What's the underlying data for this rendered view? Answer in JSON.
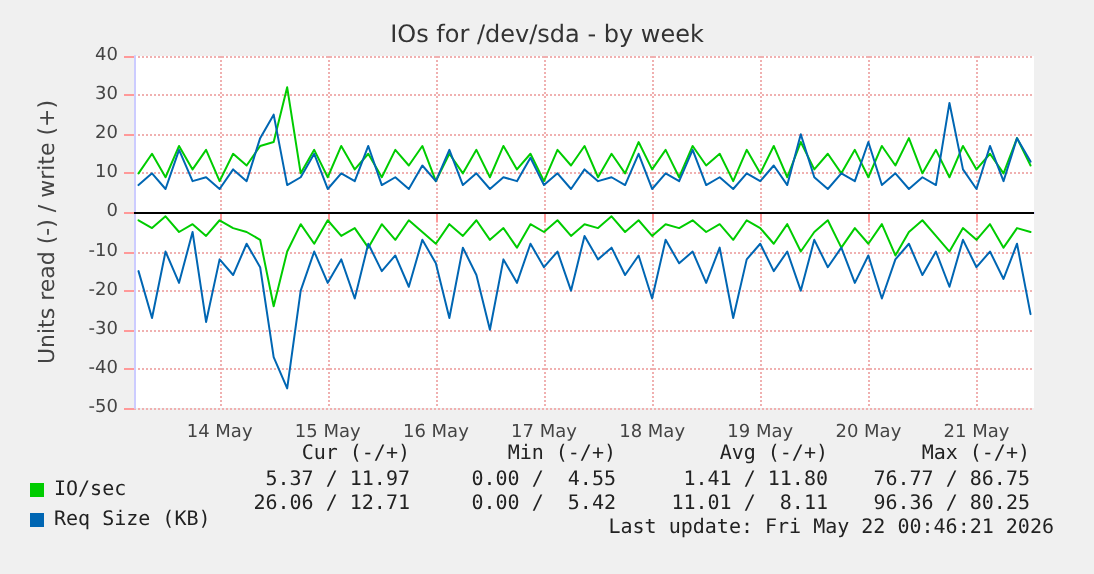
{
  "chart_data": {
    "type": "line",
    "title": "IOs for /dev/sda - by week",
    "ylabel": "Units read (-) / write (+)",
    "x": [
      "2026-05-13T18:00",
      "2026-05-13T21:00",
      "2026-05-14T00:00",
      "2026-05-14T03:00",
      "2026-05-14T06:00",
      "2026-05-14T09:00",
      "2026-05-14T12:00",
      "2026-05-14T15:00",
      "2026-05-14T18:00",
      "2026-05-14T21:00",
      "2026-05-15T00:00",
      "2026-05-15T03:00",
      "2026-05-15T06:00",
      "2026-05-15T09:00",
      "2026-05-15T12:00",
      "2026-05-15T15:00",
      "2026-05-15T18:00",
      "2026-05-15T21:00",
      "2026-05-16T00:00",
      "2026-05-16T03:00",
      "2026-05-16T06:00",
      "2026-05-16T09:00",
      "2026-05-16T12:00",
      "2026-05-16T15:00",
      "2026-05-16T18:00",
      "2026-05-16T21:00",
      "2026-05-17T00:00",
      "2026-05-17T03:00",
      "2026-05-17T06:00",
      "2026-05-17T09:00",
      "2026-05-17T12:00",
      "2026-05-17T15:00",
      "2026-05-17T18:00",
      "2026-05-17T21:00",
      "2026-05-18T00:00",
      "2026-05-18T03:00",
      "2026-05-18T06:00",
      "2026-05-18T09:00",
      "2026-05-18T12:00",
      "2026-05-18T15:00",
      "2026-05-18T18:00",
      "2026-05-18T21:00",
      "2026-05-19T00:00",
      "2026-05-19T03:00",
      "2026-05-19T06:00",
      "2026-05-19T09:00",
      "2026-05-19T12:00",
      "2026-05-19T15:00",
      "2026-05-19T18:00",
      "2026-05-19T21:00",
      "2026-05-20T00:00",
      "2026-05-20T03:00",
      "2026-05-20T06:00",
      "2026-05-20T09:00",
      "2026-05-20T12:00",
      "2026-05-20T15:00",
      "2026-05-20T18:00",
      "2026-05-20T21:00",
      "2026-05-21T00:00",
      "2026-05-21T03:00",
      "2026-05-21T06:00",
      "2026-05-21T09:00",
      "2026-05-21T12:00",
      "2026-05-21T15:00",
      "2026-05-21T18:00",
      "2026-05-21T21:00",
      "2026-05-22T00:00"
    ],
    "series": [
      {
        "name": "IO/sec",
        "color": "#00cc00",
        "values": [
          10,
          15,
          9,
          17,
          11,
          16,
          8,
          15,
          12,
          17,
          18,
          32,
          10,
          16,
          9,
          17,
          11,
          15,
          9,
          16,
          12,
          17,
          8,
          15,
          10,
          16,
          9,
          17,
          11,
          15,
          8,
          16,
          12,
          17,
          9,
          15,
          10,
          18,
          11,
          16,
          9,
          17,
          12,
          15,
          8,
          16,
          10,
          17,
          9,
          18,
          11,
          15,
          10,
          16,
          9,
          17,
          12,
          19,
          10,
          16,
          9,
          17,
          11,
          15,
          10,
          19,
          12
        ]
      },
      {
        "color": "#00cc00",
        "values": [
          -2,
          -4,
          -1,
          -5,
          -3,
          -6,
          -2,
          -4,
          -5,
          -7,
          -24,
          -10,
          -3,
          -8,
          -2,
          -6,
          -4,
          -9,
          -3,
          -7,
          -2,
          -5,
          -8,
          -3,
          -6,
          -2,
          -7,
          -4,
          -9,
          -3,
          -5,
          -2,
          -6,
          -3,
          -4,
          -1,
          -5,
          -2,
          -6,
          -3,
          -4,
          -2,
          -5,
          -3,
          -7,
          -2,
          -4,
          -8,
          -3,
          -10,
          -5,
          -2,
          -9,
          -4,
          -8,
          -3,
          -11,
          -5,
          -2,
          -6,
          -10,
          -4,
          -7,
          -3,
          -9,
          -4,
          -5
        ]
      },
      {
        "name": "Req Size (KB)",
        "color": "#0066b3",
        "values": [
          7,
          10,
          6,
          16,
          8,
          9,
          6,
          11,
          8,
          19,
          25,
          7,
          9,
          15,
          6,
          10,
          8,
          17,
          7,
          9,
          6,
          12,
          8,
          16,
          7,
          10,
          6,
          9,
          8,
          14,
          7,
          10,
          6,
          11,
          8,
          9,
          7,
          15,
          6,
          10,
          8,
          16,
          7,
          9,
          6,
          10,
          8,
          12,
          7,
          20,
          9,
          6,
          10,
          8,
          18,
          7,
          10,
          6,
          9,
          7,
          28,
          11,
          6,
          17,
          8,
          19,
          13
        ]
      },
      {
        "color": "#0066b3",
        "values": [
          -15,
          -27,
          -10,
          -18,
          -5,
          -28,
          -12,
          -16,
          -8,
          -14,
          -37,
          -45,
          -20,
          -10,
          -18,
          -12,
          -22,
          -8,
          -15,
          -11,
          -19,
          -7,
          -13,
          -27,
          -9,
          -16,
          -30,
          -12,
          -18,
          -8,
          -14,
          -10,
          -20,
          -6,
          -12,
          -9,
          -16,
          -11,
          -22,
          -7,
          -13,
          -10,
          -18,
          -9,
          -27,
          -12,
          -8,
          -15,
          -10,
          -20,
          -7,
          -14,
          -9,
          -18,
          -11,
          -22,
          -12,
          -8,
          -16,
          -10,
          -19,
          -7,
          -14,
          -10,
          -17,
          -8,
          -26
        ]
      }
    ],
    "xlim": [
      "2026-05-13T17:00",
      "2026-05-22T00:46"
    ],
    "xticks": [
      {
        "value": "2026-05-14T12:00",
        "label": "14 May"
      },
      {
        "value": "2026-05-15T12:00",
        "label": "15 May"
      },
      {
        "value": "2026-05-16T12:00",
        "label": "16 May"
      },
      {
        "value": "2026-05-17T12:00",
        "label": "17 May"
      },
      {
        "value": "2026-05-18T12:00",
        "label": "18 May"
      },
      {
        "value": "2026-05-19T12:00",
        "label": "19 May"
      },
      {
        "value": "2026-05-20T12:00",
        "label": "20 May"
      },
      {
        "value": "2026-05-21T12:00",
        "label": "21 May"
      }
    ],
    "ylim": [
      -50,
      40
    ],
    "yticks": [
      -50,
      -40,
      -30,
      -20,
      -10,
      0,
      10,
      20,
      30,
      40
    ],
    "ref_lines": [
      {
        "axis": "y",
        "value": 0,
        "color": "#000000"
      }
    ],
    "grid": true,
    "legend": "bottom left",
    "marker": "none",
    "line_style": "solid",
    "annotations": [
      "Cur (-/+)",
      "Min (-/+)",
      "Avg (-/+)",
      "Max (-/+)",
      "5.37 / 11.97",
      "0.00 /  4.55",
      "1.41 / 11.80",
      "76.77 / 86.75",
      "26.06 / 12.71",
      "0.00 /  5.42",
      "11.01 /  8.11",
      "96.36 / 80.25",
      "Last update: Fri May 22 00:46:21 2026"
    ]
  }
}
